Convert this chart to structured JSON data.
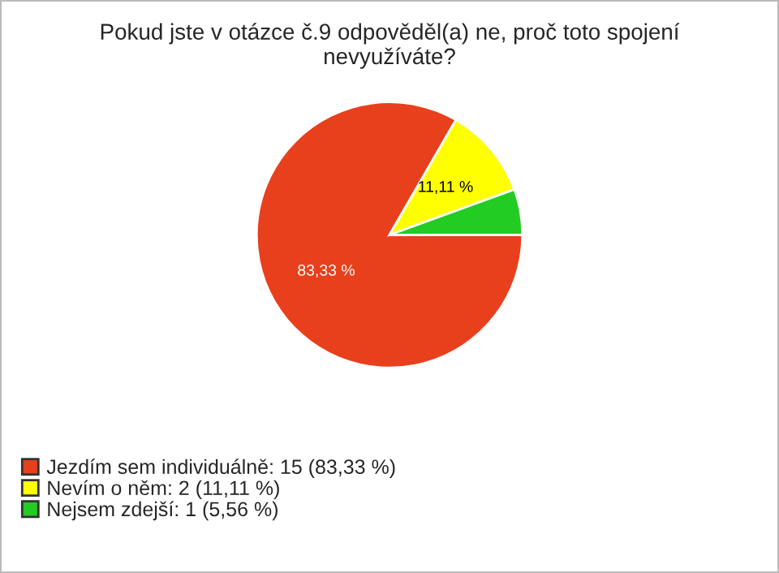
{
  "chart_data": {
    "type": "pie",
    "title": "Pokud jste v otázce č.9 odpověděl(a) ne, proč toto spojení\nnevyužíváte?",
    "categories": [
      "Jezdím sem individuálně: 15 (83,33 %)",
      "Nevím o něm: 2 (11,11 %)",
      "Nejsem zdejší: 1 (5,56 %)"
    ],
    "values": [
      83.33,
      11.11,
      5.56
    ],
    "colors": [
      "#e8401c",
      "#ffff00",
      "#22cc22"
    ],
    "value_labels": [
      "83,33 %",
      "11,11 %",
      null
    ],
    "legend": "bottom left"
  }
}
